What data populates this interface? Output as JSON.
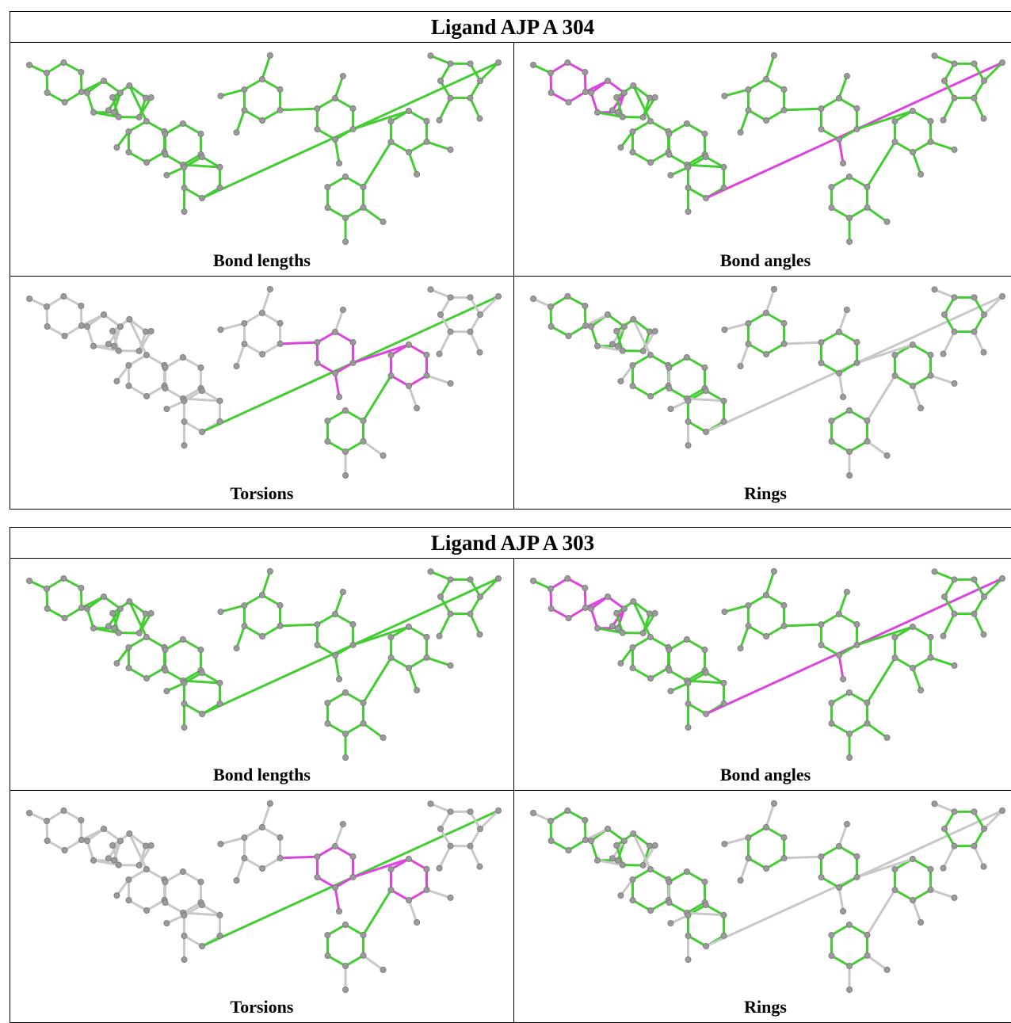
{
  "tables": [
    {
      "title": "Ligand AJP A 304",
      "panels": [
        {
          "caption": "Bond lengths"
        },
        {
          "caption": "Bond angles"
        },
        {
          "caption": "Torsions"
        },
        {
          "caption": "Rings"
        }
      ]
    },
    {
      "title": "Ligand AJP A 303",
      "panels": [
        {
          "caption": "Bond lengths"
        },
        {
          "caption": "Bond angles"
        },
        {
          "caption": "Torsions"
        },
        {
          "caption": "Rings"
        }
      ]
    }
  ]
}
